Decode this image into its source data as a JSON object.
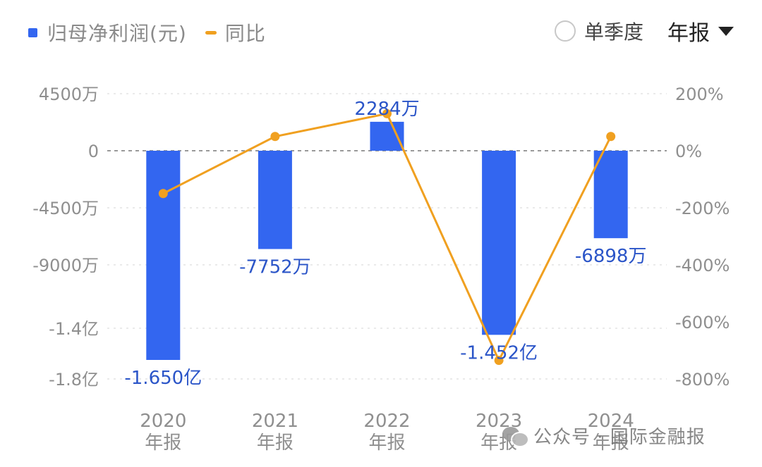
{
  "legend": {
    "bar_label": "归母净利润(元)",
    "line_label": "同比"
  },
  "controls": {
    "quarter_label": "单季度",
    "report_label": "年报"
  },
  "watermark": "公众号 · 国际金融报",
  "colors": {
    "bar": "#3366f0",
    "line": "#f0a020",
    "bar_label": "#2b55c8",
    "grid": "#e3e3e3",
    "zero_line": "#9a9a9a"
  },
  "chart_data": {
    "type": "bar",
    "categories": [
      "2020\n年报",
      "2021\n年报",
      "2022\n年报",
      "2023\n年报",
      "2024\n年报"
    ],
    "series": [
      {
        "name": "归母净利润(元)",
        "type": "bar",
        "axis": "left",
        "values": [
          -165000000,
          -77520000,
          22840000,
          -145200000,
          -68980000
        ],
        "labels": [
          "-1.650亿",
          "-7752万",
          "2284万",
          "-1.452亿",
          "-6898万"
        ]
      },
      {
        "name": "同比",
        "type": "line",
        "axis": "right",
        "values": [
          -150,
          50,
          130,
          -735,
          50
        ]
      }
    ],
    "left_axis": {
      "ticks": [
        45000000,
        0,
        -45000000,
        -90000000,
        -140000000,
        -180000000
      ],
      "tick_labels": [
        "4500万",
        "0",
        "-4500万",
        "-9000万",
        "-1.4亿",
        "-1.8亿"
      ]
    },
    "right_axis": {
      "ticks": [
        200,
        0,
        -200,
        -400,
        -600,
        -800
      ],
      "tick_labels": [
        "200%",
        "0%",
        "-200%",
        "-400%",
        "-600%",
        "-800%"
      ]
    },
    "grid": true,
    "legend_position": "top-left"
  }
}
